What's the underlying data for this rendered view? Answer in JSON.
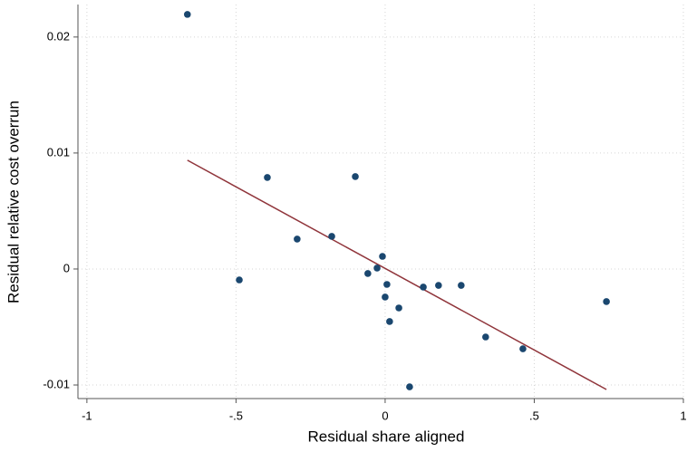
{
  "chart_data": {
    "type": "scatter",
    "xlabel": "Residual share aligned",
    "ylabel": "Residual relative cost overrun",
    "x": [
      -0.663,
      -0.395,
      -0.1,
      -0.295,
      -0.179,
      -0.489,
      -0.058,
      -0.027,
      -0.009,
      0.006,
      0.0,
      0.015,
      0.046,
      0.128,
      0.179,
      0.255,
      0.742,
      0.337,
      0.462,
      0.082
    ],
    "values": [
      0.02195,
      0.00789,
      0.00797,
      0.00258,
      0.00281,
      -0.00094,
      -0.00039,
      8e-05,
      0.00109,
      -0.00133,
      -0.00242,
      -0.00453,
      -0.00336,
      -0.00156,
      -0.00141,
      -0.00141,
      -0.00281,
      -0.00586,
      -0.00688,
      -0.01016
    ],
    "color": "#1a476f",
    "fit_line": {
      "x": [
        -0.663,
        0.742
      ],
      "values": [
        0.00938,
        -0.01039
      ],
      "color": "#90353b"
    },
    "xlim": [
      -1.03,
      1.0
    ],
    "ylim": [
      -0.01117,
      0.0228
    ],
    "xticks": [
      -1,
      {
        "value": -0.5,
        "label": "-.5"
      },
      0,
      {
        "value": 0.5,
        "label": ".5"
      },
      1
    ],
    "yticks": [
      -0.01,
      0,
      0.01,
      0.02
    ],
    "grid": true
  }
}
